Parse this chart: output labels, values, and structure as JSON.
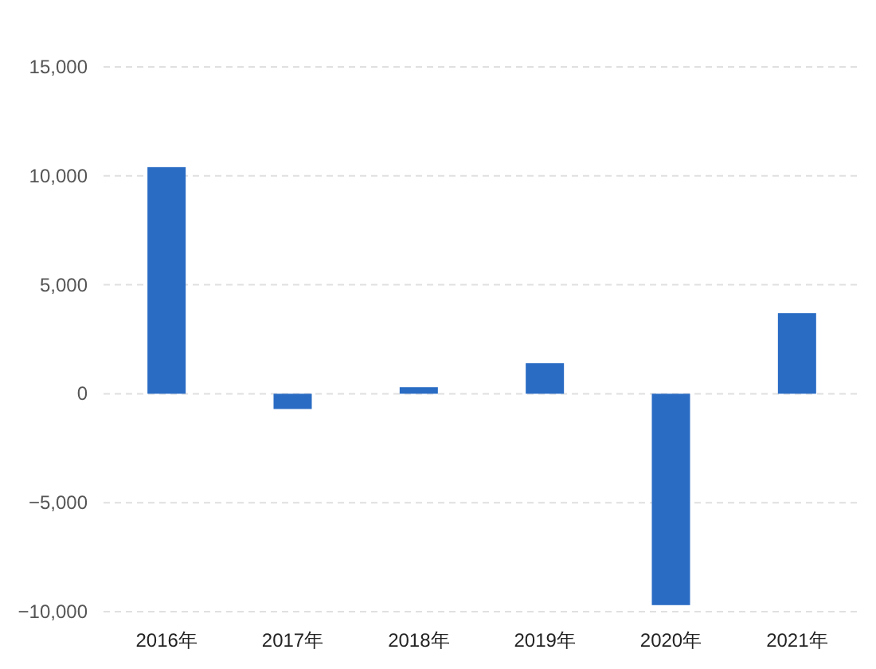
{
  "chart_data": {
    "type": "bar",
    "categories": [
      "2016年",
      "2017年",
      "2018年",
      "2019年",
      "2020年",
      "2021年"
    ],
    "values": [
      10400,
      -700,
      300,
      1400,
      -9700,
      3700
    ],
    "color": "#2a6cc4",
    "ylim": [
      -10000,
      15000
    ],
    "yticks": [
      {
        "value": -10000,
        "label": "−10,000"
      },
      {
        "value": -5000,
        "label": "−5,000"
      },
      0,
      {
        "value": 5000,
        "label": "5,000"
      },
      {
        "value": 10000,
        "label": "10,000"
      },
      {
        "value": 15000,
        "label": "15,000"
      }
    ],
    "grid": "y"
  }
}
